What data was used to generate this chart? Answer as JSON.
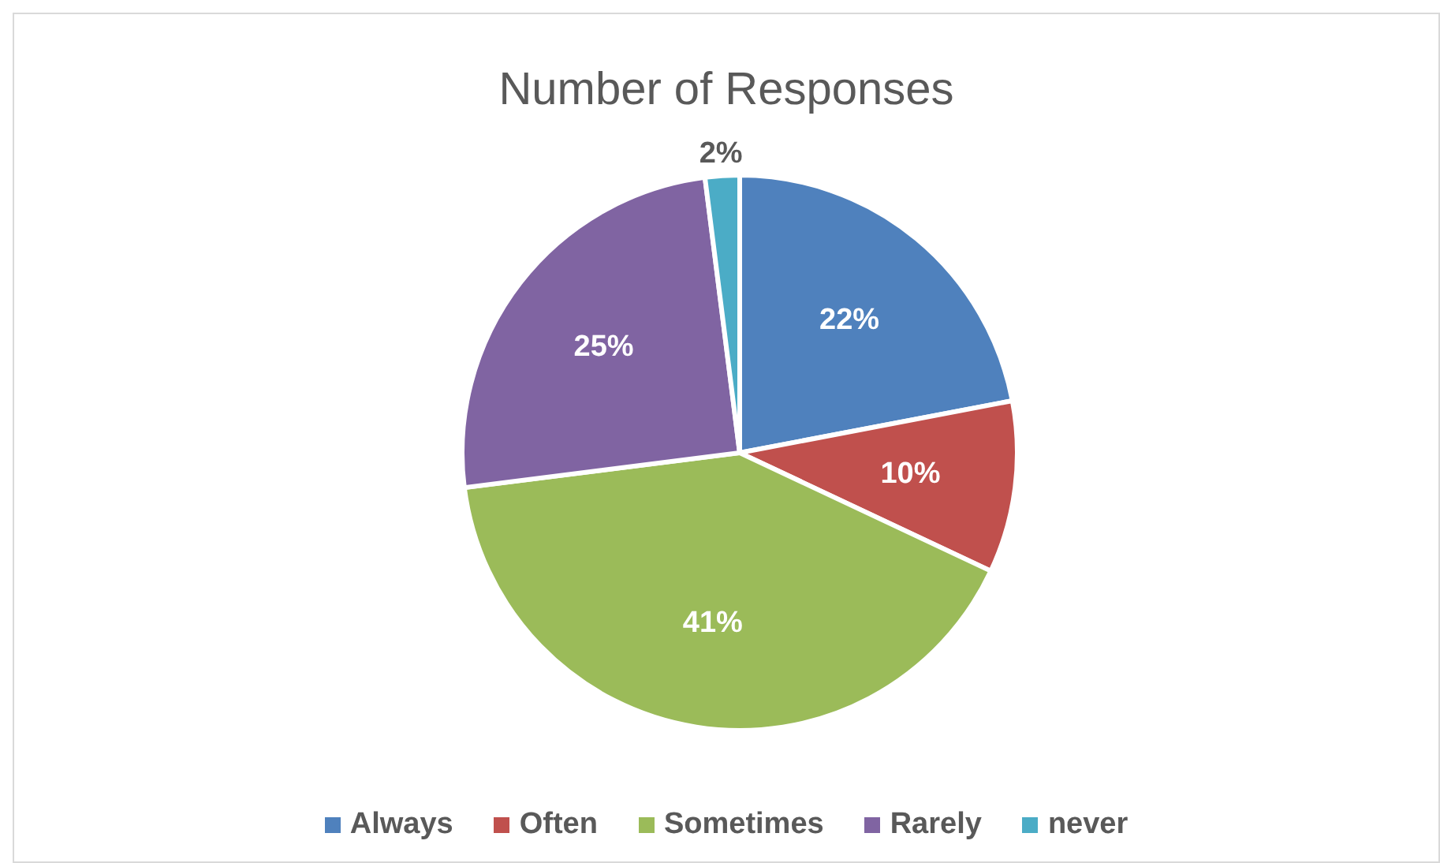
{
  "chart_data": {
    "type": "pie",
    "title": "Number of Responses",
    "categories": [
      "Always",
      "Often",
      "Sometimes",
      "Rarely",
      "never"
    ],
    "values": [
      22,
      10,
      41,
      25,
      2
    ],
    "value_labels": [
      "22%",
      "10%",
      "41%",
      "25%",
      "2%"
    ],
    "colors": [
      "#4f81bd",
      "#c0504d",
      "#9bbb59",
      "#8064a2",
      "#4bacc6"
    ],
    "legend": "bottom"
  }
}
